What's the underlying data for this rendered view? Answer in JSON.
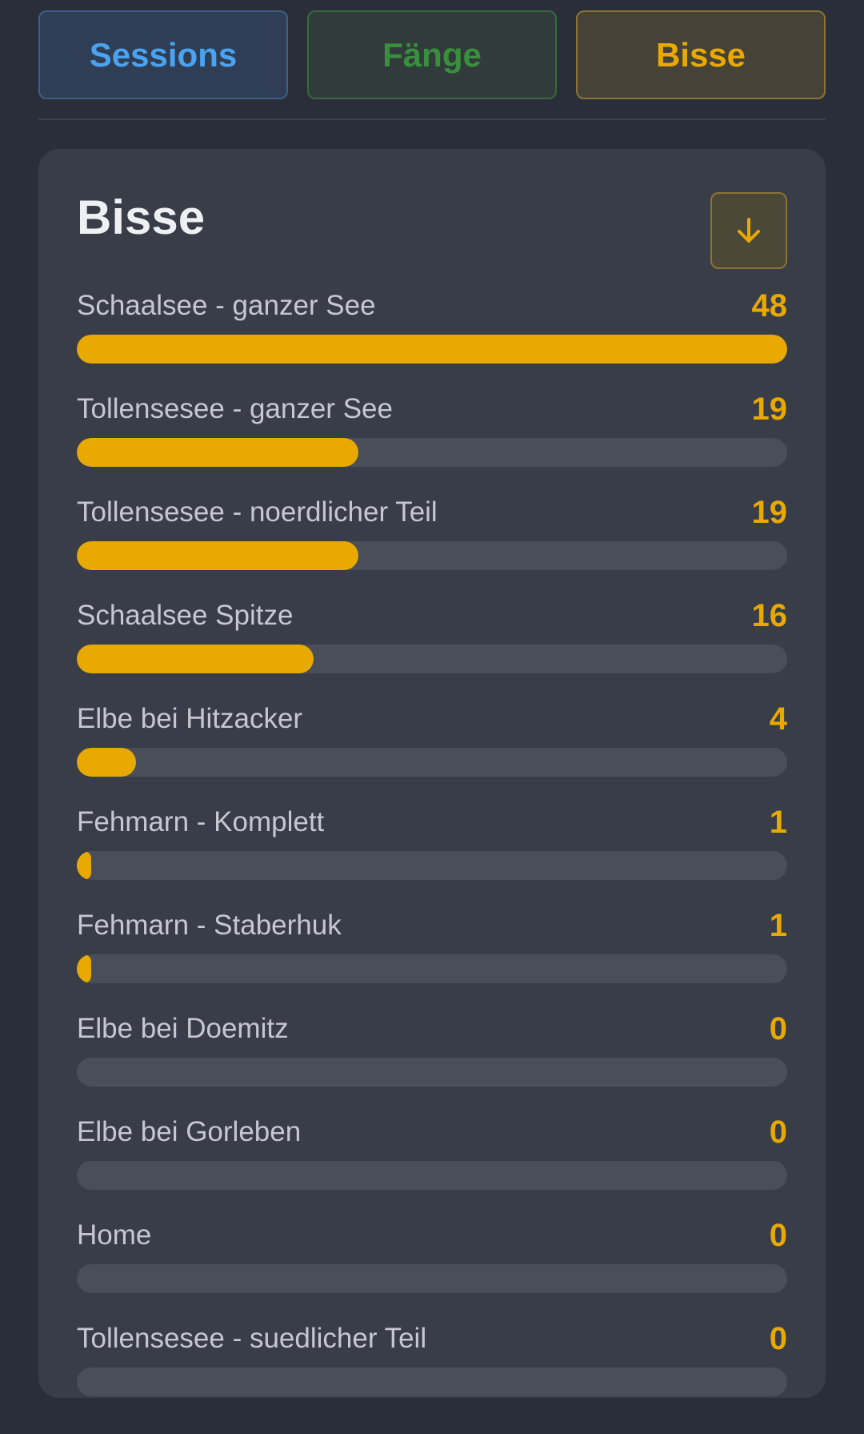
{
  "tabs": {
    "sessions": "Sessions",
    "faenge": "Fänge",
    "bisse": "Bisse"
  },
  "card": {
    "title": "Bisse",
    "sort_icon": "arrow-down-icon"
  },
  "colors": {
    "accent": "#e8a900",
    "sessions": "#4aa3f0",
    "faenge": "#3a8f3f",
    "background": "#2a2e38",
    "card": "#393d48",
    "track": "#4a4e58"
  },
  "max_value": 48,
  "rows": [
    {
      "label": "Schaalsee - ganzer See",
      "value": 48
    },
    {
      "label": "Tollensesee - ganzer See",
      "value": 19
    },
    {
      "label": "Tollensesee - noerdlicher Teil",
      "value": 19
    },
    {
      "label": "Schaalsee Spitze",
      "value": 16
    },
    {
      "label": "Elbe bei Hitzacker",
      "value": 4
    },
    {
      "label": "Fehmarn - Komplett",
      "value": 1
    },
    {
      "label": "Fehmarn - Staberhuk",
      "value": 1
    },
    {
      "label": "Elbe bei Doemitz",
      "value": 0
    },
    {
      "label": "Elbe bei Gorleben",
      "value": 0
    },
    {
      "label": "Home",
      "value": 0
    },
    {
      "label": "Tollensesee - suedlicher Teil",
      "value": 0
    }
  ]
}
